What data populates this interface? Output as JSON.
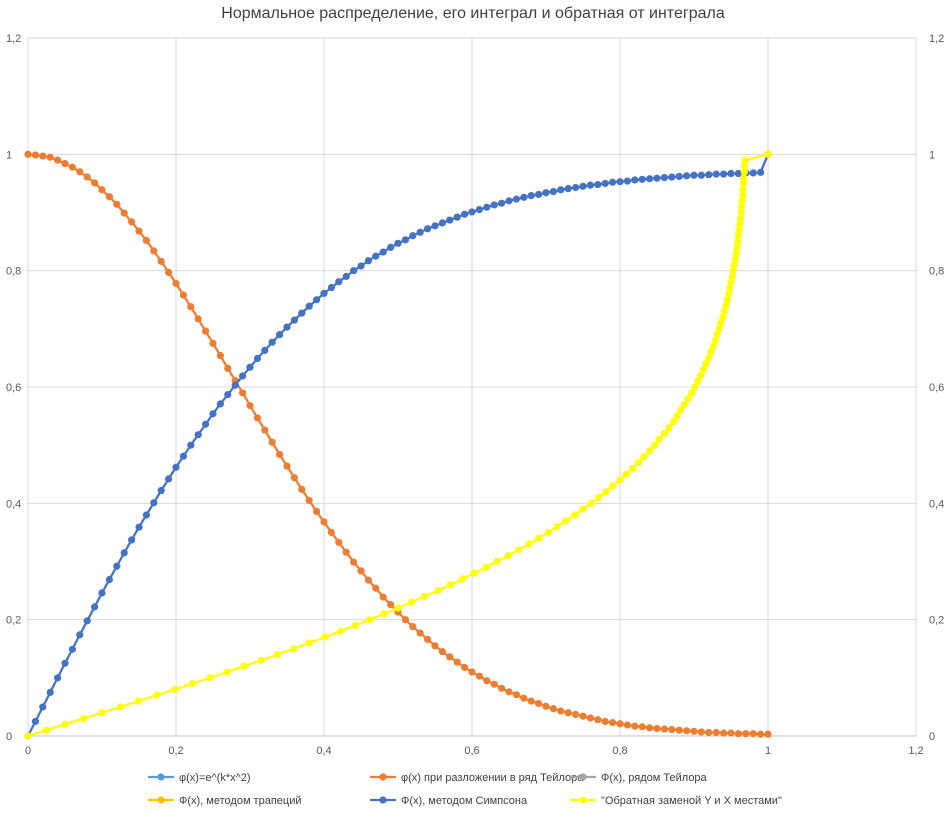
{
  "chart_data": {
    "type": "scatter",
    "title": "Нормальное распределение, его интеграл и обратная от интеграла",
    "xlim": [
      0,
      1.2
    ],
    "ylim": [
      0,
      1.2
    ],
    "x_ticks": [
      "0",
      "0,2",
      "0,4",
      "0,6",
      "0,8",
      "1",
      "1,2"
    ],
    "y_ticks_left": [
      "0",
      "0,2",
      "0,4",
      "0,6",
      "0,8",
      "1",
      "1,2"
    ],
    "y_ticks_right": [
      "0",
      "0,2",
      "0,4",
      "0,6",
      "0,8",
      "1",
      "1,2"
    ],
    "grid": true,
    "legend_position": "bottom",
    "series": [
      {
        "name": "φ(x)=e^(k*x^2)",
        "color": "#5B9BD5",
        "x": [
          0,
          0.1,
          0.2,
          0.3,
          0.4,
          0.5,
          0.6,
          0.7,
          0.8,
          0.9,
          1.0
        ],
        "y": [
          1.0,
          0.939,
          0.777,
          0.57,
          0.386,
          0.243,
          0.134,
          0.068,
          0.03,
          0.013,
          0.004
        ],
        "visible_points": false
      },
      {
        "name": "φ(x) при разложении в ряд Тейлора",
        "color": "#ED7D31",
        "x": [
          0,
          0.01,
          0.02,
          0.03,
          0.04,
          0.05,
          0.06,
          0.07,
          0.08,
          0.09,
          0.1,
          0.11,
          0.12,
          0.13,
          0.14,
          0.15,
          0.16,
          0.17,
          0.18,
          0.19,
          0.2,
          0.21,
          0.22,
          0.23,
          0.24,
          0.25,
          0.26,
          0.27,
          0.28,
          0.29,
          0.3,
          0.31,
          0.32,
          0.33,
          0.34,
          0.35,
          0.36,
          0.37,
          0.38,
          0.39,
          0.4,
          0.41,
          0.42,
          0.43,
          0.44,
          0.45,
          0.46,
          0.47,
          0.48,
          0.49,
          0.5,
          0.51,
          0.52,
          0.53,
          0.54,
          0.55,
          0.56,
          0.57,
          0.58,
          0.59,
          0.6,
          0.61,
          0.62,
          0.63,
          0.64,
          0.65,
          0.66,
          0.67,
          0.68,
          0.69,
          0.7,
          0.71,
          0.72,
          0.73,
          0.74,
          0.75,
          0.76,
          0.77,
          0.78,
          0.79,
          0.8,
          0.81,
          0.82,
          0.83,
          0.84,
          0.85,
          0.86,
          0.87,
          0.88,
          0.89,
          0.9,
          0.91,
          0.92,
          0.93,
          0.94,
          0.95,
          0.96,
          0.97,
          0.98,
          0.99,
          1.0
        ],
        "y": [
          1.0,
          0.999,
          0.997,
          0.995,
          0.99,
          0.984,
          0.978,
          0.97,
          0.961,
          0.951,
          0.939,
          0.927,
          0.914,
          0.899,
          0.884,
          0.868,
          0.852,
          0.834,
          0.816,
          0.797,
          0.778,
          0.758,
          0.738,
          0.717,
          0.696,
          0.675,
          0.654,
          0.632,
          0.611,
          0.59,
          0.568,
          0.547,
          0.526,
          0.505,
          0.484,
          0.464,
          0.444,
          0.424,
          0.405,
          0.386,
          0.368,
          0.35,
          0.333,
          0.316,
          0.299,
          0.284,
          0.268,
          0.254,
          0.239,
          0.226,
          0.213,
          0.2,
          0.188,
          0.177,
          0.166,
          0.155,
          0.145,
          0.136,
          0.127,
          0.118,
          0.11,
          0.103,
          0.095,
          0.089,
          0.082,
          0.076,
          0.071,
          0.065,
          0.06,
          0.056,
          0.051,
          0.047,
          0.043,
          0.04,
          0.037,
          0.034,
          0.031,
          0.028,
          0.025,
          0.023,
          0.021,
          0.019,
          0.017,
          0.016,
          0.014,
          0.013,
          0.012,
          0.011,
          0.01,
          0.009,
          0.008,
          0.007,
          0.006,
          0.006,
          0.005,
          0.005,
          0.004,
          0.004,
          0.004,
          0.003,
          0.003
        ]
      },
      {
        "name": "Ф(x), рядом Тейлора",
        "color": "#A5A5A5",
        "x": [
          0,
          1.0
        ],
        "y": [
          0,
          1.0
        ],
        "visible_points": false
      },
      {
        "name": "Ф(x), методом трапеций",
        "color": "#FFC000",
        "x": [
          0,
          1.0
        ],
        "y": [
          0,
          1.0
        ],
        "visible_points": false
      },
      {
        "name": "Ф(x), методом Симпсона",
        "color": "#4472C4",
        "x": [
          0,
          0.01,
          0.02,
          0.03,
          0.04,
          0.05,
          0.06,
          0.07,
          0.08,
          0.09,
          0.1,
          0.11,
          0.12,
          0.13,
          0.14,
          0.15,
          0.16,
          0.17,
          0.18,
          0.19,
          0.2,
          0.21,
          0.22,
          0.23,
          0.24,
          0.25,
          0.26,
          0.27,
          0.28,
          0.29,
          0.3,
          0.31,
          0.32,
          0.33,
          0.34,
          0.35,
          0.36,
          0.37,
          0.38,
          0.39,
          0.4,
          0.41,
          0.42,
          0.43,
          0.44,
          0.45,
          0.46,
          0.47,
          0.48,
          0.49,
          0.5,
          0.51,
          0.52,
          0.53,
          0.54,
          0.55,
          0.56,
          0.57,
          0.58,
          0.59,
          0.6,
          0.61,
          0.62,
          0.63,
          0.64,
          0.65,
          0.66,
          0.67,
          0.68,
          0.69,
          0.7,
          0.71,
          0.72,
          0.73,
          0.74,
          0.75,
          0.76,
          0.77,
          0.78,
          0.79,
          0.8,
          0.81,
          0.82,
          0.83,
          0.84,
          0.85,
          0.86,
          0.87,
          0.88,
          0.89,
          0.9,
          0.91,
          0.92,
          0.93,
          0.94,
          0.95,
          0.96,
          0.97,
          0.98,
          0.99,
          1.0
        ],
        "y": [
          0.0,
          0.025,
          0.05,
          0.075,
          0.1,
          0.125,
          0.149,
          0.174,
          0.198,
          0.222,
          0.246,
          0.269,
          0.292,
          0.315,
          0.337,
          0.359,
          0.38,
          0.401,
          0.422,
          0.442,
          0.462,
          0.481,
          0.5,
          0.518,
          0.536,
          0.554,
          0.571,
          0.587,
          0.603,
          0.619,
          0.634,
          0.649,
          0.663,
          0.677,
          0.69,
          0.703,
          0.715,
          0.727,
          0.739,
          0.75,
          0.761,
          0.771,
          0.781,
          0.79,
          0.8,
          0.808,
          0.817,
          0.825,
          0.832,
          0.84,
          0.847,
          0.853,
          0.86,
          0.866,
          0.872,
          0.877,
          0.882,
          0.887,
          0.892,
          0.897,
          0.901,
          0.905,
          0.909,
          0.913,
          0.916,
          0.92,
          0.923,
          0.926,
          0.929,
          0.931,
          0.934,
          0.936,
          0.939,
          0.941,
          0.943,
          0.945,
          0.947,
          0.948,
          0.95,
          0.952,
          0.953,
          0.954,
          0.956,
          0.957,
          0.958,
          0.959,
          0.96,
          0.961,
          0.962,
          0.963,
          0.964,
          0.964,
          0.965,
          0.966,
          0.966,
          0.967,
          0.967,
          0.968,
          0.968,
          0.969,
          1.0
        ]
      },
      {
        "name": "\"Обратная заменой Y и X местами\"",
        "color": "#FFFF00",
        "x": [
          0.0,
          0.025,
          0.05,
          0.075,
          0.1,
          0.125,
          0.149,
          0.174,
          0.198,
          0.222,
          0.246,
          0.269,
          0.292,
          0.315,
          0.337,
          0.359,
          0.38,
          0.401,
          0.422,
          0.442,
          0.462,
          0.481,
          0.5,
          0.518,
          0.536,
          0.554,
          0.571,
          0.587,
          0.603,
          0.619,
          0.634,
          0.649,
          0.663,
          0.677,
          0.69,
          0.703,
          0.715,
          0.727,
          0.739,
          0.75,
          0.761,
          0.771,
          0.781,
          0.79,
          0.8,
          0.808,
          0.817,
          0.825,
          0.832,
          0.84,
          0.847,
          0.853,
          0.86,
          0.866,
          0.872,
          0.877,
          0.882,
          0.887,
          0.892,
          0.897,
          0.901,
          0.905,
          0.909,
          0.913,
          0.916,
          0.92,
          0.923,
          0.926,
          0.929,
          0.931,
          0.934,
          0.936,
          0.939,
          0.941,
          0.943,
          0.945,
          0.947,
          0.948,
          0.95,
          0.952,
          0.953,
          0.954,
          0.956,
          0.957,
          0.958,
          0.959,
          0.96,
          0.961,
          0.962,
          0.963,
          0.964,
          0.964,
          0.965,
          0.966,
          0.966,
          0.967,
          0.967,
          0.968,
          0.968,
          0.969,
          1.0
        ],
        "y": [
          0,
          0.01,
          0.02,
          0.03,
          0.04,
          0.05,
          0.06,
          0.07,
          0.08,
          0.09,
          0.1,
          0.11,
          0.12,
          0.13,
          0.14,
          0.15,
          0.16,
          0.17,
          0.18,
          0.19,
          0.2,
          0.21,
          0.22,
          0.23,
          0.24,
          0.25,
          0.26,
          0.27,
          0.28,
          0.29,
          0.3,
          0.31,
          0.32,
          0.33,
          0.34,
          0.35,
          0.36,
          0.37,
          0.38,
          0.39,
          0.4,
          0.41,
          0.42,
          0.43,
          0.44,
          0.45,
          0.46,
          0.47,
          0.48,
          0.49,
          0.5,
          0.51,
          0.52,
          0.53,
          0.54,
          0.55,
          0.56,
          0.57,
          0.58,
          0.59,
          0.6,
          0.61,
          0.62,
          0.63,
          0.64,
          0.65,
          0.66,
          0.67,
          0.68,
          0.69,
          0.7,
          0.71,
          0.72,
          0.73,
          0.74,
          0.75,
          0.76,
          0.77,
          0.78,
          0.79,
          0.8,
          0.81,
          0.82,
          0.83,
          0.84,
          0.85,
          0.86,
          0.87,
          0.88,
          0.89,
          0.9,
          0.91,
          0.92,
          0.93,
          0.94,
          0.95,
          0.96,
          0.97,
          0.98,
          0.99,
          1.0
        ]
      }
    ],
    "legend": [
      "φ(x)=e^(k*x^2)",
      "φ(x) при разложении в ряд Тейлора",
      "Ф(x), рядом Тейлора",
      "Ф(x), методом трапеций",
      "Ф(x), методом Симпсона",
      "\"Обратная заменой Y и X местами\""
    ]
  }
}
